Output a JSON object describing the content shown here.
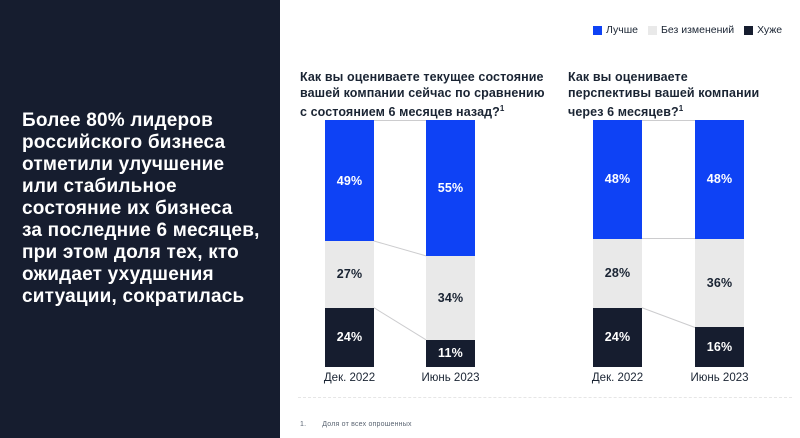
{
  "left_panel": {
    "text": "Более 80% лидеров\nроссийского бизнеса\nотметили улучшение\nили стабильное\nсостояние их бизнеса\nза последние 6 месяцев,\nпри этом доля тех, кто\nожидает ухудшения\nситуации, сократилась",
    "bg_color": "#161D2F"
  },
  "legend": {
    "items": [
      {
        "label": "Лучше",
        "color": "#0E42F5"
      },
      {
        "label": "Без изменений",
        "color": "#E9E9E9"
      },
      {
        "label": "Хуже",
        "color": "#161D2F"
      }
    ]
  },
  "chart_data": [
    {
      "type": "bar",
      "stacked": true,
      "title": "Как вы оцениваете текущее состояние\nвашей компании сейчас по сравнению\nс состоянием 6 месяцев назад?",
      "title_sup": "1",
      "categories": [
        "Дек. 2022",
        "Июнь 2023"
      ],
      "series": [
        {
          "name": "Лучше",
          "color": "#0E42F5",
          "label_color": "#FFFFFF",
          "values": [
            49,
            55
          ]
        },
        {
          "name": "Без изменений",
          "color": "#E9E9E9",
          "label_color": "#1A2433",
          "values": [
            27,
            34
          ]
        },
        {
          "name": "Хуже",
          "color": "#161D2F",
          "label_color": "#FFFFFF",
          "values": [
            24,
            11
          ]
        }
      ],
      "unit": "%",
      "ylim": [
        0,
        100
      ],
      "grid": false,
      "legend_position": "top-right"
    },
    {
      "type": "bar",
      "stacked": true,
      "title": "Как вы оцениваете\nперспективы вашей компании\nчерез 6 месяцев?",
      "title_sup": "1",
      "categories": [
        "Дек. 2022",
        "Июнь 2023"
      ],
      "series": [
        {
          "name": "Лучше",
          "color": "#0E42F5",
          "label_color": "#FFFFFF",
          "values": [
            48,
            48
          ]
        },
        {
          "name": "Без изменений",
          "color": "#E9E9E9",
          "label_color": "#1A2433",
          "values": [
            28,
            36
          ]
        },
        {
          "name": "Хуже",
          "color": "#161D2F",
          "label_color": "#FFFFFF",
          "values": [
            24,
            16
          ]
        }
      ],
      "unit": "%",
      "ylim": [
        0,
        100
      ],
      "grid": false,
      "legend_position": "top-right"
    }
  ],
  "footnote": {
    "marker": "1.",
    "text": "Доля от всех опрошенных"
  }
}
